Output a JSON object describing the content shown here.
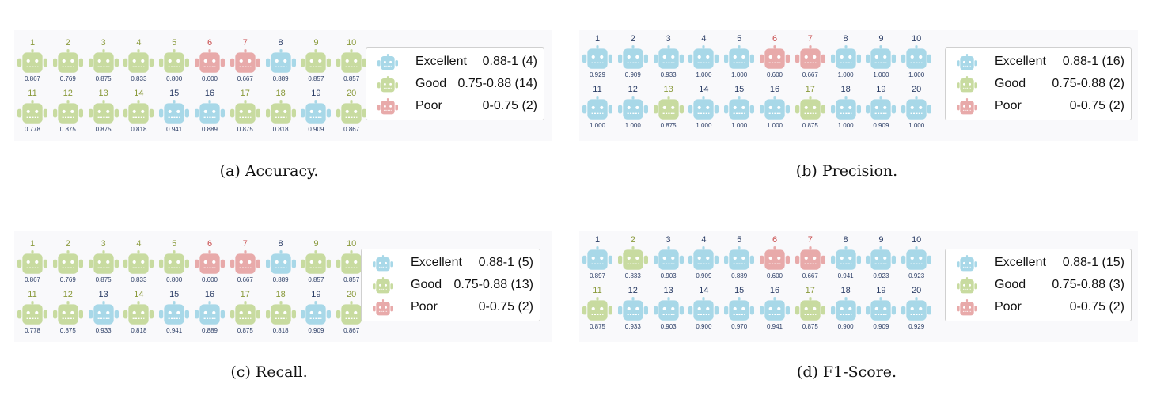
{
  "colors": {
    "excellent": "#a8d8e8",
    "good": "#c8dba0",
    "poor": "#e8aaaa",
    "excellent_num": "#2c3e66",
    "good_num": "#8a9a3c",
    "poor_num": "#c94c4c"
  },
  "icon": "robot-icon",
  "chart_data": [
    {
      "type": "table",
      "caption": "(a) Accuracy.",
      "ids": [
        1,
        2,
        3,
        4,
        5,
        6,
        7,
        8,
        9,
        10,
        11,
        12,
        13,
        14,
        15,
        16,
        17,
        18,
        19,
        20
      ],
      "values": [
        "0.867",
        "0.769",
        "0.875",
        "0.833",
        "0.800",
        "0.600",
        "0.667",
        "0.889",
        "0.857",
        "0.857",
        "0.778",
        "0.875",
        "0.875",
        "0.818",
        "0.941",
        "0.889",
        "0.875",
        "0.818",
        "0.909",
        "0.867"
      ],
      "categories": [
        "good",
        "good",
        "good",
        "good",
        "good",
        "poor",
        "poor",
        "excellent",
        "good",
        "good",
        "good",
        "good",
        "good",
        "good",
        "excellent",
        "excellent",
        "good",
        "good",
        "excellent",
        "good"
      ],
      "legend": [
        {
          "key": "excellent",
          "name": "Excellent",
          "range": "0.88-1 (4)"
        },
        {
          "key": "good",
          "name": "Good",
          "range": "0.75-0.88 (14)"
        },
        {
          "key": "poor",
          "name": "Poor",
          "range": "0-0.75 (2)"
        }
      ]
    },
    {
      "type": "table",
      "caption": "(b) Precision.",
      "ids": [
        1,
        2,
        3,
        4,
        5,
        6,
        7,
        8,
        9,
        10,
        11,
        12,
        13,
        14,
        15,
        16,
        17,
        18,
        19,
        20
      ],
      "values": [
        "0.929",
        "0.909",
        "0.933",
        "1.000",
        "1.000",
        "0.600",
        "0.667",
        "1.000",
        "1.000",
        "1.000",
        "1.000",
        "1.000",
        "0.875",
        "1.000",
        "1.000",
        "1.000",
        "0.875",
        "1.000",
        "0.909",
        "1.000"
      ],
      "categories": [
        "excellent",
        "excellent",
        "excellent",
        "excellent",
        "excellent",
        "poor",
        "poor",
        "excellent",
        "excellent",
        "excellent",
        "excellent",
        "excellent",
        "good",
        "excellent",
        "excellent",
        "excellent",
        "good",
        "excellent",
        "excellent",
        "excellent"
      ],
      "legend": [
        {
          "key": "excellent",
          "name": "Excellent",
          "range": "0.88-1 (16)"
        },
        {
          "key": "good",
          "name": "Good",
          "range": "0.75-0.88 (2)"
        },
        {
          "key": "poor",
          "name": "Poor",
          "range": "0-0.75 (2)"
        }
      ]
    },
    {
      "type": "table",
      "caption": "(c) Recall.",
      "ids": [
        1,
        2,
        3,
        4,
        5,
        6,
        7,
        8,
        9,
        10,
        11,
        12,
        13,
        14,
        15,
        16,
        17,
        18,
        19,
        20
      ],
      "values": [
        "0.867",
        "0.769",
        "0.875",
        "0.833",
        "0.800",
        "0.600",
        "0.667",
        "0.889",
        "0.857",
        "0.857",
        "0.778",
        "0.875",
        "0.933",
        "0.818",
        "0.941",
        "0.889",
        "0.875",
        "0.818",
        "0.909",
        "0.867"
      ],
      "categories": [
        "good",
        "good",
        "good",
        "good",
        "good",
        "poor",
        "poor",
        "excellent",
        "good",
        "good",
        "good",
        "good",
        "excellent",
        "good",
        "excellent",
        "excellent",
        "good",
        "good",
        "excellent",
        "good"
      ],
      "legend": [
        {
          "key": "excellent",
          "name": "Excellent",
          "range": "0.88-1 (5)"
        },
        {
          "key": "good",
          "name": "Good",
          "range": "0.75-0.88 (13)"
        },
        {
          "key": "poor",
          "name": "Poor",
          "range": "0-0.75 (2)"
        }
      ]
    },
    {
      "type": "table",
      "caption": "(d) F1-Score.",
      "ids": [
        1,
        2,
        3,
        4,
        5,
        6,
        7,
        8,
        9,
        10,
        11,
        12,
        13,
        14,
        15,
        16,
        17,
        18,
        19,
        20
      ],
      "values": [
        "0.897",
        "0.833",
        "0.903",
        "0.909",
        "0.889",
        "0.600",
        "0.667",
        "0.941",
        "0.923",
        "0.923",
        "0.875",
        "0.933",
        "0.903",
        "0.900",
        "0.970",
        "0.941",
        "0.875",
        "0.900",
        "0.909",
        "0.929"
      ],
      "categories": [
        "excellent",
        "good",
        "excellent",
        "excellent",
        "excellent",
        "poor",
        "poor",
        "excellent",
        "excellent",
        "excellent",
        "good",
        "excellent",
        "excellent",
        "excellent",
        "excellent",
        "excellent",
        "good",
        "excellent",
        "excellent",
        "excellent"
      ],
      "legend": [
        {
          "key": "excellent",
          "name": "Excellent",
          "range": "0.88-1 (15)"
        },
        {
          "key": "good",
          "name": "Good",
          "range": "0.75-0.88 (3)"
        },
        {
          "key": "poor",
          "name": "Poor",
          "range": "0-0.75 (2)"
        }
      ]
    }
  ]
}
